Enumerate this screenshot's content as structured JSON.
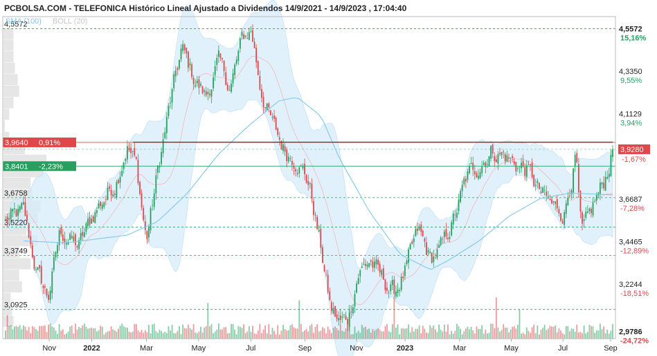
{
  "title": "PCBOLSA.COM - TELEFONICA Histórico Lineal Ajustado a Dividendos 14/9/2021 - 14/9/2023 , 17:04:40",
  "legend": {
    "sma": "SMA (100)",
    "boll": "BOLL (20)"
  },
  "colors": {
    "up": "#27a05f",
    "down": "#e0474b",
    "sma": "#7ec8ec",
    "boll_fill": "#d6ecfa",
    "ref_line": "#e0474b",
    "support": "#27a05f"
  },
  "chart_data": {
    "type": "candlestick",
    "title": "PCBOLSA.COM - TELEFONICA Histórico Lineal Ajustado a Dividendos 14/9/2021 - 14/9/2023 , 17:04:40",
    "ylim": [
      2.94,
      4.62
    ],
    "x_ticks": [
      {
        "label": "Nov",
        "year": false,
        "t": 0.072
      },
      {
        "label": "2022",
        "year": true,
        "t": 0.142
      },
      {
        "label": "Mar",
        "year": false,
        "t": 0.232
      },
      {
        "label": "May",
        "year": false,
        "t": 0.318
      },
      {
        "label": "Jul",
        "year": false,
        "t": 0.404
      },
      {
        "label": "Sep",
        "year": false,
        "t": 0.493
      },
      {
        "label": "Nov",
        "year": false,
        "t": 0.578
      },
      {
        "label": "2023",
        "year": true,
        "t": 0.658
      },
      {
        "label": "Mar",
        "year": false,
        "t": 0.748
      },
      {
        "label": "May",
        "year": false,
        "t": 0.833
      },
      {
        "label": "Jul",
        "year": false,
        "t": 0.918
      },
      {
        "label": "Sep",
        "year": false,
        "t": 1.003
      }
    ],
    "right_axis": [
      {
        "value": 4.5572,
        "label": "4,5572",
        "pct": "15,16%",
        "pct_sign": "pos",
        "bold": true
      },
      {
        "value": 4.335,
        "label": "4,3350",
        "pct": "9,55%",
        "pct_sign": "pos",
        "bold": false
      },
      {
        "value": 4.1129,
        "label": "4,1129",
        "pct": "3,94%",
        "pct_sign": "pos",
        "bold": false
      },
      {
        "value": 3.6687,
        "label": "3,6687",
        "pct": "-7,28%",
        "pct_sign": "neg",
        "bold": false
      },
      {
        "value": 3.4465,
        "label": "3,4465",
        "pct": "-12,89%",
        "pct_sign": "neg",
        "bold": false
      },
      {
        "value": 3.2244,
        "label": "3,2244",
        "pct": "-18,51%",
        "pct_sign": "neg",
        "bold": false
      },
      {
        "value": 2.9786,
        "label": "2,9786",
        "pct": "-24,72%",
        "pct_sign": "neg",
        "bold": true
      }
    ],
    "current_price": {
      "value": 3.928,
      "label": "3,9280",
      "pct": "-1,67%"
    },
    "left_levels": [
      {
        "value": 4.5572,
        "label": "4,5572",
        "style": "red-dash"
      },
      {
        "value": 3.6758,
        "label": "3,6758",
        "style": "green-dash"
      },
      {
        "value": 3.522,
        "label": "3,5220",
        "style": "green-dash"
      },
      {
        "value": 3.3749,
        "label": "3,3749",
        "style": "green-dash"
      },
      {
        "value": 3.0925,
        "label": "3,0925",
        "style": "green-dash"
      }
    ],
    "tags": [
      {
        "value": 3.964,
        "label": "3,9640",
        "pct": "0,91%",
        "color": "#e0474b"
      },
      {
        "value": 3.8401,
        "label": "3,8401",
        "pct": "-2,23%",
        "color": "#27a05f"
      }
    ],
    "resistance_line": {
      "value": 3.965,
      "t_start": 0.21,
      "t_end": 1.0
    },
    "anchors": [
      [
        0.0,
        3.55
      ],
      [
        0.01,
        3.57
      ],
      [
        0.03,
        3.6
      ],
      [
        0.05,
        3.3
      ],
      [
        0.07,
        3.15
      ],
      [
        0.09,
        3.5
      ],
      [
        0.12,
        3.42
      ],
      [
        0.15,
        3.62
      ],
      [
        0.18,
        3.75
      ],
      [
        0.2,
        3.95
      ],
      [
        0.215,
        3.85
      ],
      [
        0.232,
        3.45
      ],
      [
        0.25,
        3.8
      ],
      [
        0.27,
        4.15
      ],
      [
        0.29,
        4.45
      ],
      [
        0.31,
        4.3
      ],
      [
        0.33,
        4.2
      ],
      [
        0.35,
        4.38
      ],
      [
        0.37,
        4.25
      ],
      [
        0.39,
        4.5
      ],
      [
        0.405,
        4.55
      ],
      [
        0.42,
        4.25
      ],
      [
        0.44,
        4.05
      ],
      [
        0.46,
        3.92
      ],
      [
        0.48,
        3.88
      ],
      [
        0.5,
        3.75
      ],
      [
        0.52,
        3.4
      ],
      [
        0.535,
        3.1
      ],
      [
        0.55,
        3.02
      ],
      [
        0.565,
        3.05
      ],
      [
        0.58,
        3.28
      ],
      [
        0.6,
        3.35
      ],
      [
        0.62,
        3.25
      ],
      [
        0.64,
        3.18
      ],
      [
        0.66,
        3.3
      ],
      [
        0.68,
        3.5
      ],
      [
        0.7,
        3.35
      ],
      [
        0.72,
        3.42
      ],
      [
        0.74,
        3.58
      ],
      [
        0.76,
        3.78
      ],
      [
        0.78,
        3.85
      ],
      [
        0.8,
        3.92
      ],
      [
        0.82,
        3.9
      ],
      [
        0.84,
        3.85
      ],
      [
        0.86,
        3.82
      ],
      [
        0.88,
        3.7
      ],
      [
        0.9,
        3.63
      ],
      [
        0.92,
        3.6
      ],
      [
        0.94,
        3.9
      ],
      [
        0.945,
        3.58
      ],
      [
        0.95,
        3.48
      ],
      [
        0.96,
        3.55
      ],
      [
        0.97,
        3.65
      ],
      [
        0.985,
        3.75
      ],
      [
        1.0,
        3.92
      ]
    ],
    "sma_anchors": [
      [
        0.03,
        3.45
      ],
      [
        0.1,
        3.44
      ],
      [
        0.2,
        3.48
      ],
      [
        0.25,
        3.55
      ],
      [
        0.3,
        3.7
      ],
      [
        0.35,
        3.9
      ],
      [
        0.4,
        4.05
      ],
      [
        0.45,
        4.18
      ],
      [
        0.48,
        4.2
      ],
      [
        0.52,
        4.1
      ],
      [
        0.55,
        3.88
      ],
      [
        0.6,
        3.6
      ],
      [
        0.65,
        3.38
      ],
      [
        0.7,
        3.3
      ],
      [
        0.73,
        3.35
      ],
      [
        0.78,
        3.45
      ],
      [
        0.83,
        3.58
      ],
      [
        0.88,
        3.67
      ],
      [
        0.93,
        3.7
      ],
      [
        1.0,
        3.69
      ]
    ]
  }
}
